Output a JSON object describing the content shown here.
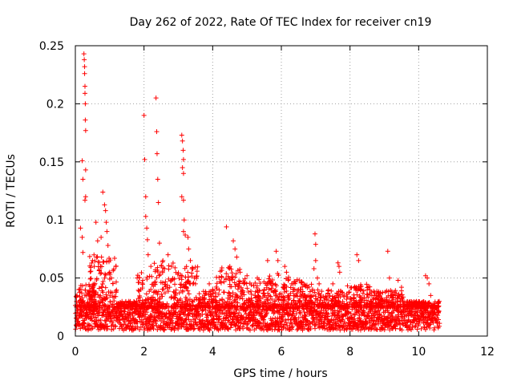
{
  "chart_data": {
    "type": "scatter",
    "title": "Day 262 of 2022, Rate Of TEC Index for receiver cn19",
    "xlabel": "GPS time / hours",
    "ylabel": "ROTI / TECUs",
    "xlim": [
      0,
      12
    ],
    "ylim": [
      0,
      0.25
    ],
    "xticks": [
      0,
      2,
      4,
      6,
      8,
      10,
      12
    ],
    "yticks": [
      0,
      0.05,
      0.1,
      0.15,
      0.2,
      0.25
    ],
    "xtick_labels": [
      "0",
      "2",
      "4",
      "6",
      "8",
      "10",
      "12"
    ],
    "ytick_labels": [
      "0",
      "0.05",
      "0.1",
      "0.15",
      "0.2",
      "0.25"
    ],
    "grid": true,
    "marker": "+",
    "color": "#ff0000",
    "data_range_x": [
      0,
      10.6
    ],
    "peaks": [
      {
        "x": 0.05,
        "y": 0.035
      },
      {
        "x": 0.1,
        "y": 0.04
      },
      {
        "x": 0.15,
        "y": 0.093
      },
      {
        "x": 0.2,
        "y": 0.151
      },
      {
        "x": 0.22,
        "y": 0.135
      },
      {
        "x": 0.25,
        "y": 0.243
      },
      {
        "x": 0.26,
        "y": 0.238
      },
      {
        "x": 0.27,
        "y": 0.232
      },
      {
        "x": 0.27,
        "y": 0.226
      },
      {
        "x": 0.28,
        "y": 0.215
      },
      {
        "x": 0.28,
        "y": 0.209
      },
      {
        "x": 0.29,
        "y": 0.2
      },
      {
        "x": 0.29,
        "y": 0.186
      },
      {
        "x": 0.3,
        "y": 0.177
      },
      {
        "x": 0.3,
        "y": 0.143
      },
      {
        "x": 0.3,
        "y": 0.12
      },
      {
        "x": 0.28,
        "y": 0.117
      },
      {
        "x": 0.2,
        "y": 0.085
      },
      {
        "x": 0.22,
        "y": 0.072
      },
      {
        "x": 0.5,
        "y": 0.065
      },
      {
        "x": 0.55,
        "y": 0.06
      },
      {
        "x": 0.6,
        "y": 0.098
      },
      {
        "x": 0.65,
        "y": 0.082
      },
      {
        "x": 0.75,
        "y": 0.085
      },
      {
        "x": 0.8,
        "y": 0.124
      },
      {
        "x": 0.85,
        "y": 0.113
      },
      {
        "x": 0.88,
        "y": 0.108
      },
      {
        "x": 0.9,
        "y": 0.098
      },
      {
        "x": 0.92,
        "y": 0.09
      },
      {
        "x": 0.95,
        "y": 0.078
      },
      {
        "x": 0.98,
        "y": 0.064
      },
      {
        "x": 1.0,
        "y": 0.055
      },
      {
        "x": 1.05,
        "y": 0.05
      },
      {
        "x": 1.8,
        "y": 0.05
      },
      {
        "x": 1.9,
        "y": 0.04
      },
      {
        "x": 2.0,
        "y": 0.19
      },
      {
        "x": 2.02,
        "y": 0.152
      },
      {
        "x": 2.05,
        "y": 0.12
      },
      {
        "x": 2.05,
        "y": 0.103
      },
      {
        "x": 2.08,
        "y": 0.093
      },
      {
        "x": 2.1,
        "y": 0.083
      },
      {
        "x": 2.12,
        "y": 0.07
      },
      {
        "x": 2.2,
        "y": 0.06
      },
      {
        "x": 2.35,
        "y": 0.205
      },
      {
        "x": 2.37,
        "y": 0.176
      },
      {
        "x": 2.38,
        "y": 0.157
      },
      {
        "x": 2.4,
        "y": 0.135
      },
      {
        "x": 2.42,
        "y": 0.115
      },
      {
        "x": 2.45,
        "y": 0.08
      },
      {
        "x": 2.55,
        "y": 0.065
      },
      {
        "x": 2.6,
        "y": 0.058
      },
      {
        "x": 2.7,
        "y": 0.07
      },
      {
        "x": 2.8,
        "y": 0.06
      },
      {
        "x": 3.1,
        "y": 0.173
      },
      {
        "x": 3.12,
        "y": 0.168
      },
      {
        "x": 3.14,
        "y": 0.16
      },
      {
        "x": 3.15,
        "y": 0.152
      },
      {
        "x": 3.12,
        "y": 0.145
      },
      {
        "x": 3.15,
        "y": 0.14
      },
      {
        "x": 3.1,
        "y": 0.12
      },
      {
        "x": 3.15,
        "y": 0.117
      },
      {
        "x": 3.17,
        "y": 0.1
      },
      {
        "x": 3.15,
        "y": 0.09
      },
      {
        "x": 3.2,
        "y": 0.087
      },
      {
        "x": 3.28,
        "y": 0.085
      },
      {
        "x": 3.3,
        "y": 0.075
      },
      {
        "x": 3.35,
        "y": 0.065
      },
      {
        "x": 3.4,
        "y": 0.058
      },
      {
        "x": 3.5,
        "y": 0.045
      },
      {
        "x": 3.9,
        "y": 0.045
      },
      {
        "x": 4.0,
        "y": 0.04
      },
      {
        "x": 4.4,
        "y": 0.094
      },
      {
        "x": 4.6,
        "y": 0.082
      },
      {
        "x": 4.65,
        "y": 0.075
      },
      {
        "x": 4.7,
        "y": 0.068
      },
      {
        "x": 4.5,
        "y": 0.06
      },
      {
        "x": 4.8,
        "y": 0.055
      },
      {
        "x": 5.0,
        "y": 0.052
      },
      {
        "x": 5.3,
        "y": 0.05
      },
      {
        "x": 5.6,
        "y": 0.065
      },
      {
        "x": 5.85,
        "y": 0.073
      },
      {
        "x": 5.9,
        "y": 0.065
      },
      {
        "x": 6.1,
        "y": 0.06
      },
      {
        "x": 6.15,
        "y": 0.055
      },
      {
        "x": 6.2,
        "y": 0.048
      },
      {
        "x": 6.3,
        "y": 0.045
      },
      {
        "x": 6.5,
        "y": 0.04
      },
      {
        "x": 6.98,
        "y": 0.088
      },
      {
        "x": 7.0,
        "y": 0.079
      },
      {
        "x": 7.0,
        "y": 0.065
      },
      {
        "x": 6.95,
        "y": 0.058
      },
      {
        "x": 7.05,
        "y": 0.05
      },
      {
        "x": 7.1,
        "y": 0.045
      },
      {
        "x": 7.5,
        "y": 0.045
      },
      {
        "x": 7.65,
        "y": 0.063
      },
      {
        "x": 7.68,
        "y": 0.06
      },
      {
        "x": 7.7,
        "y": 0.055
      },
      {
        "x": 8.2,
        "y": 0.07
      },
      {
        "x": 8.25,
        "y": 0.065
      },
      {
        "x": 8.3,
        "y": 0.04
      },
      {
        "x": 8.5,
        "y": 0.04
      },
      {
        "x": 9.1,
        "y": 0.073
      },
      {
        "x": 9.15,
        "y": 0.05
      },
      {
        "x": 9.4,
        "y": 0.048
      },
      {
        "x": 9.5,
        "y": 0.042
      },
      {
        "x": 9.2,
        "y": 0.035
      },
      {
        "x": 10.2,
        "y": 0.052
      },
      {
        "x": 10.25,
        "y": 0.05
      },
      {
        "x": 10.3,
        "y": 0.045
      },
      {
        "x": 10.35,
        "y": 0.035
      },
      {
        "x": 10.4,
        "y": 0.025
      }
    ],
    "bursts": [
      {
        "x_start": 0.0,
        "x_end": 0.6,
        "y_max": 0.045
      },
      {
        "x_start": 0.4,
        "x_end": 1.2,
        "y_max": 0.07
      },
      {
        "x_start": 1.2,
        "x_end": 1.8,
        "y_max": 0.03
      },
      {
        "x_start": 1.8,
        "x_end": 2.3,
        "y_max": 0.055
      },
      {
        "x_start": 2.3,
        "x_end": 2.9,
        "y_max": 0.065
      },
      {
        "x_start": 2.9,
        "x_end": 3.6,
        "y_max": 0.06
      },
      {
        "x_start": 3.6,
        "x_end": 4.1,
        "y_max": 0.04
      },
      {
        "x_start": 4.1,
        "x_end": 4.9,
        "y_max": 0.06
      },
      {
        "x_start": 4.9,
        "x_end": 5.6,
        "y_max": 0.05
      },
      {
        "x_start": 5.6,
        "x_end": 6.6,
        "y_max": 0.055
      },
      {
        "x_start": 6.6,
        "x_end": 7.2,
        "y_max": 0.045
      },
      {
        "x_start": 7.2,
        "x_end": 7.9,
        "y_max": 0.04
      },
      {
        "x_start": 7.9,
        "x_end": 8.6,
        "y_max": 0.045
      },
      {
        "x_start": 8.6,
        "x_end": 9.6,
        "y_max": 0.04
      },
      {
        "x_start": 9.6,
        "x_end": 10.6,
        "y_max": 0.03
      }
    ],
    "baseline_band": [
      0.005,
      0.025
    ]
  }
}
